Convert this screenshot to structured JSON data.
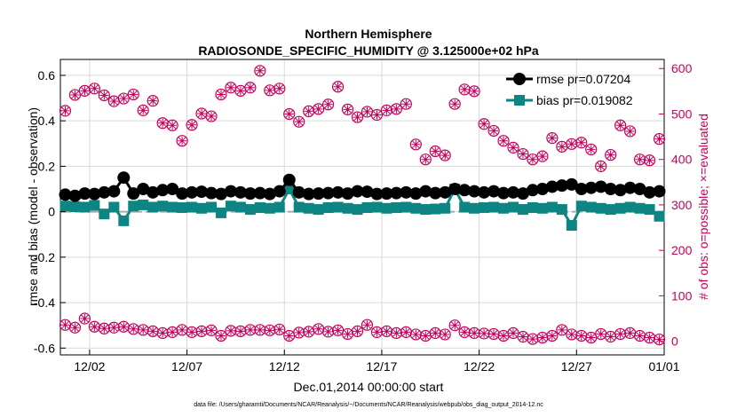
{
  "chart_data": {
    "type": "line",
    "title": "Northern Hemisphere",
    "subtitle": "RADIOSONDE_SPECIFIC_HUMIDITY @ 3.125000e+02 hPa",
    "xlabel": "Dec.01,2014 00:00:00 start",
    "ylabel": "rmse and bias (model - observation)",
    "y2label": "# of obs: o=possible; ×=evaluated",
    "footer": "data file: /Users/gharamti/Documents/NCAR/Reanalysis/~/Documents/NCAR/Reanalysis/webpub/obs_diag_output_2014-12.nc",
    "xlim": [
      0.5,
      31.5
    ],
    "ylim": [
      -0.63,
      0.67
    ],
    "y2lim": [
      -30,
      620
    ],
    "grid": true,
    "legend_position": "top-right",
    "colors": {
      "rmse": "#000000",
      "bias": "#0d8583",
      "obs": "#c4005a",
      "zero": "#aaaaaa",
      "grid": "#d9d9d9"
    },
    "x_ticks": [
      {
        "value": 2,
        "label": "12/02"
      },
      {
        "value": 7,
        "label": "12/07"
      },
      {
        "value": 12,
        "label": "12/12"
      },
      {
        "value": 17,
        "label": "12/17"
      },
      {
        "value": 22,
        "label": "12/22"
      },
      {
        "value": 27,
        "label": "12/27"
      },
      {
        "value": 32,
        "label": "01/01"
      }
    ],
    "y_ticks": [
      {
        "value": 0.6,
        "label": "0.6"
      },
      {
        "value": 0.4,
        "label": "0.4"
      },
      {
        "value": 0.2,
        "label": "0.2"
      },
      {
        "value": 0,
        "label": "0"
      },
      {
        "value": -0.2,
        "label": "-0.2"
      },
      {
        "value": -0.4,
        "label": "-0.4"
      },
      {
        "value": -0.6,
        "label": "-0.6"
      }
    ],
    "y2_ticks": [
      {
        "value": 600,
        "label": "600"
      },
      {
        "value": 500,
        "label": "500"
      },
      {
        "value": 400,
        "label": "400"
      },
      {
        "value": 300,
        "label": "300"
      },
      {
        "value": 200,
        "label": "200"
      },
      {
        "value": 100,
        "label": "100"
      },
      {
        "value": 0,
        "label": "0"
      }
    ],
    "series": [
      {
        "name": "rmse",
        "legend": "rmse pr=0.07204",
        "axis": "left",
        "x": [
          0.75,
          1.25,
          1.75,
          2.25,
          2.75,
          3.25,
          3.75,
          4.25,
          4.75,
          5.25,
          5.75,
          6.25,
          6.75,
          7.25,
          7.75,
          8.25,
          8.75,
          9.25,
          9.75,
          10.25,
          10.75,
          11.25,
          11.75,
          12.25,
          12.75,
          13.25,
          13.75,
          14.25,
          14.75,
          15.25,
          15.75,
          16.25,
          16.75,
          17.25,
          17.75,
          18.25,
          18.75,
          19.25,
          19.75,
          20.25,
          20.75,
          21.25,
          21.75,
          22.25,
          22.75,
          23.25,
          23.75,
          24.25,
          24.75,
          25.25,
          25.75,
          26.25,
          26.75,
          27.25,
          27.75,
          28.25,
          28.75,
          29.25,
          29.75,
          30.25,
          30.75,
          31.25
        ],
        "values": [
          0.075,
          0.07,
          0.08,
          0.078,
          0.085,
          0.09,
          0.15,
          0.08,
          0.1,
          0.085,
          0.095,
          0.1,
          0.08,
          0.085,
          0.088,
          0.082,
          0.078,
          0.09,
          0.085,
          0.08,
          0.082,
          0.078,
          0.09,
          0.14,
          0.085,
          0.078,
          0.08,
          0.082,
          0.085,
          0.08,
          0.09,
          0.088,
          0.078,
          0.08,
          0.082,
          0.085,
          0.08,
          0.09,
          0.082,
          0.085,
          0.1,
          0.095,
          0.09,
          0.085,
          0.09,
          0.082,
          0.085,
          0.08,
          0.095,
          0.1,
          0.11,
          0.115,
          0.12,
          0.1,
          0.105,
          0.11,
          0.1,
          0.095,
          0.105,
          0.1,
          0.085,
          0.09
        ]
      },
      {
        "name": "bias",
        "legend": "bias pr=0.019082",
        "axis": "left",
        "x": [
          0.75,
          1.25,
          1.75,
          2.25,
          2.75,
          3.25,
          3.75,
          4.25,
          4.75,
          5.25,
          5.75,
          6.25,
          6.75,
          7.25,
          7.75,
          8.25,
          8.75,
          9.25,
          9.75,
          10.25,
          10.75,
          11.25,
          11.75,
          12.25,
          12.75,
          13.25,
          13.75,
          14.25,
          14.75,
          15.25,
          15.75,
          16.25,
          16.75,
          17.25,
          17.75,
          18.25,
          18.75,
          19.25,
          19.75,
          20.25,
          20.75,
          21.25,
          21.75,
          22.25,
          22.75,
          23.25,
          23.75,
          24.25,
          24.75,
          25.25,
          25.75,
          26.25,
          26.75,
          27.25,
          27.75,
          28.25,
          28.75,
          29.25,
          29.75,
          30.25,
          30.75,
          31.25
        ],
        "values": [
          0.025,
          0.022,
          0.02,
          0.028,
          -0.01,
          0.02,
          -0.04,
          0.025,
          0.03,
          0.02,
          0.025,
          0.02,
          0.018,
          0.02,
          0.015,
          0.02,
          -0.005,
          0.025,
          0.02,
          0.01,
          0.018,
          0.015,
          0.02,
          0.1,
          0.02,
          0.015,
          0.01,
          0.018,
          0.02,
          0.015,
          0.01,
          0.018,
          0.02,
          0.015,
          0.018,
          0.02,
          0.015,
          0.01,
          0.012,
          0.015,
          0.1,
          0.02,
          0.015,
          0.018,
          0.02,
          0.015,
          0.02,
          0.01,
          0.018,
          0.015,
          0.02,
          0.01,
          -0.06,
          0.025,
          0.02,
          0.015,
          0.01,
          0.015,
          0.02,
          0.015,
          0.01,
          -0.02
        ]
      },
      {
        "name": "obs possible",
        "axis": "right",
        "x": [
          0.75,
          1.25,
          1.75,
          2.25,
          2.75,
          3.25,
          3.75,
          4.25,
          4.75,
          5.25,
          5.75,
          6.25,
          6.75,
          7.25,
          7.75,
          8.25,
          8.75,
          9.25,
          9.75,
          10.25,
          10.75,
          11.25,
          11.75,
          12.25,
          12.75,
          13.25,
          13.75,
          14.25,
          14.75,
          15.25,
          15.75,
          16.25,
          16.75,
          17.25,
          17.75,
          18.25,
          18.75,
          19.25,
          19.75,
          20.25,
          20.75,
          21.25,
          21.75,
          22.25,
          22.75,
          23.25,
          23.75,
          24.25,
          24.75,
          25.25,
          25.75,
          26.25,
          26.75,
          27.25,
          27.75,
          28.25,
          28.75,
          29.25,
          29.75,
          30.25,
          30.75,
          31.25
        ],
        "values": [
          507,
          542,
          551,
          556,
          541,
          528,
          534,
          543,
          508,
          529,
          480,
          475,
          441,
          476,
          501,
          495,
          543,
          558,
          551,
          558,
          595,
          552,
          556,
          500,
          483,
          506,
          511,
          521,
          560,
          510,
          493,
          505,
          498,
          508,
          511,
          522,
          433,
          400,
          418,
          409,
          522,
          554,
          550,
          478,
          463,
          441,
          426,
          412,
          400,
          407,
          447,
          428,
          434,
          437,
          422,
          385,
          410,
          475,
          462,
          400,
          398,
          445
        ],
        "evaluated": [
          507,
          542,
          551,
          556,
          541,
          528,
          534,
          543,
          508,
          529,
          480,
          475,
          441,
          476,
          501,
          495,
          543,
          558,
          551,
          558,
          595,
          552,
          556,
          500,
          483,
          506,
          511,
          521,
          560,
          510,
          493,
          505,
          498,
          508,
          511,
          522,
          433,
          400,
          418,
          409,
          522,
          554,
          550,
          478,
          463,
          441,
          426,
          412,
          400,
          407,
          447,
          428,
          434,
          437,
          422,
          385,
          410,
          475,
          462,
          400,
          398,
          445
        ]
      },
      {
        "name": "obs possible (bottom band)",
        "axis": "right",
        "x": [
          0.75,
          1.25,
          1.75,
          2.25,
          2.75,
          3.25,
          3.75,
          4.25,
          4.75,
          5.25,
          5.75,
          6.25,
          6.75,
          7.25,
          7.75,
          8.25,
          8.75,
          9.25,
          9.75,
          10.25,
          10.75,
          11.25,
          11.75,
          12.25,
          12.75,
          13.25,
          13.75,
          14.25,
          14.75,
          15.25,
          15.75,
          16.25,
          16.75,
          17.25,
          17.75,
          18.25,
          18.75,
          19.25,
          19.75,
          20.25,
          20.75,
          21.25,
          21.75,
          22.25,
          22.75,
          23.25,
          23.75,
          24.25,
          24.75,
          25.25,
          25.75,
          26.25,
          26.75,
          27.25,
          27.75,
          28.25,
          28.75,
          29.25,
          29.75,
          30.25,
          30.75,
          31.25
        ],
        "values": [
          36,
          30,
          50,
          32,
          28,
          30,
          32,
          27,
          25,
          22,
          18,
          20,
          25,
          20,
          22,
          24,
          12,
          23,
          22,
          25,
          25,
          24,
          26,
          12,
          19,
          21,
          27,
          21,
          24,
          16,
          22,
          36,
          20,
          22,
          18,
          20,
          15,
          12,
          18,
          15,
          35,
          20,
          18,
          17,
          16,
          12,
          18,
          10,
          5,
          8,
          12,
          25,
          15,
          12,
          8,
          16,
          10,
          16,
          18,
          12,
          8,
          4
        ],
        "evaluated": [
          36,
          30,
          50,
          32,
          28,
          30,
          32,
          27,
          25,
          22,
          18,
          20,
          25,
          20,
          22,
          24,
          12,
          23,
          22,
          25,
          25,
          24,
          26,
          12,
          19,
          21,
          27,
          21,
          24,
          16,
          22,
          36,
          20,
          22,
          18,
          20,
          15,
          12,
          18,
          15,
          35,
          20,
          18,
          17,
          16,
          12,
          18,
          10,
          5,
          8,
          12,
          25,
          15,
          12,
          8,
          16,
          10,
          16,
          18,
          12,
          8,
          4
        ]
      }
    ]
  }
}
